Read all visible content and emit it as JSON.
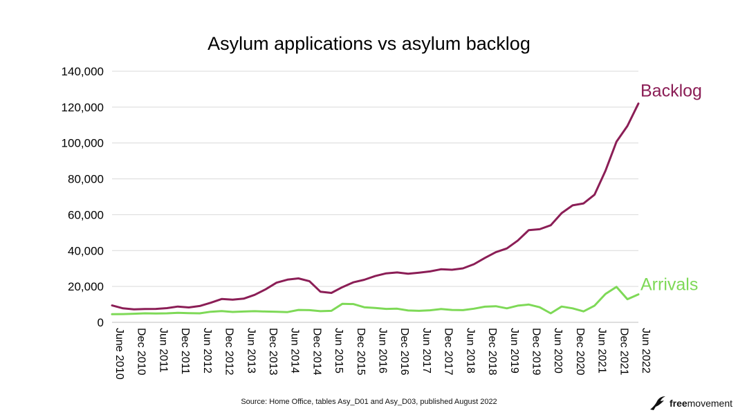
{
  "chart_data": {
    "type": "line",
    "title": "Asylum applications vs asylum backlog",
    "xlabel": "",
    "ylabel": "",
    "ylim": [
      0,
      140000
    ],
    "yticks": [
      "0",
      "20,000",
      "40,000",
      "60,000",
      "80,000",
      "100,000",
      "120,000",
      "140,000"
    ],
    "xtick_labels": [
      "June 2010",
      "Dec 2010",
      "Jun 2011",
      "Dec 2011",
      "Jun 2012",
      "Dec 2012",
      "Jun 2013",
      "Dec 2013",
      "Jun 2014",
      "Dec 2014",
      "Jun 2015",
      "Dec 2015",
      "Jun 2016",
      "Dec 2016",
      "Jun 2017",
      "Dec 2017",
      "Jun 2018",
      "Dec 2018",
      "Jun 2019",
      "Dec 2019",
      "Jun 2020",
      "Dec 2020",
      "Jun 2021",
      "Dec 2021",
      "Jun 2022"
    ],
    "x": [
      "Jun 2010",
      "Sep 2010",
      "Dec 2010",
      "Mar 2011",
      "Jun 2011",
      "Sep 2011",
      "Dec 2011",
      "Mar 2012",
      "Jun 2012",
      "Sep 2012",
      "Dec 2012",
      "Mar 2013",
      "Jun 2013",
      "Sep 2013",
      "Dec 2013",
      "Mar 2014",
      "Jun 2014",
      "Sep 2014",
      "Dec 2014",
      "Mar 2015",
      "Jun 2015",
      "Sep 2015",
      "Dec 2015",
      "Mar 2016",
      "Jun 2016",
      "Sep 2016",
      "Dec 2016",
      "Mar 2017",
      "Jun 2017",
      "Sep 2017",
      "Dec 2017",
      "Mar 2018",
      "Jun 2018",
      "Sep 2018",
      "Dec 2018",
      "Mar 2019",
      "Jun 2019",
      "Sep 2019",
      "Dec 2019",
      "Mar 2020",
      "Jun 2020",
      "Sep 2020",
      "Dec 2020",
      "Mar 2021",
      "Jun 2021",
      "Sep 2021",
      "Dec 2021",
      "Mar 2022",
      "Jun 2022"
    ],
    "series": [
      {
        "name": "Backlog",
        "color": "#8b1e56",
        "values": [
          9400,
          7800,
          7200,
          7400,
          7500,
          7900,
          8800,
          8300,
          9100,
          10900,
          13000,
          12600,
          13200,
          15300,
          18400,
          22100,
          23800,
          24500,
          22900,
          17100,
          16400,
          19600,
          22300,
          23700,
          25800,
          27300,
          27800,
          27100,
          27700,
          28400,
          29600,
          29300,
          30100,
          32400,
          35900,
          39100,
          41200,
          45600,
          51400,
          51900,
          54100,
          60900,
          65200,
          66300,
          71200,
          84500,
          100700,
          109500,
          122000
        ]
      },
      {
        "name": "Arrivals",
        "color": "#7ed957",
        "values": [
          4500,
          4600,
          4800,
          5000,
          4900,
          5000,
          5300,
          5100,
          5000,
          5900,
          6300,
          5800,
          6000,
          6200,
          6000,
          5900,
          5700,
          6900,
          6800,
          6200,
          6400,
          10300,
          10200,
          8400,
          8000,
          7500,
          7600,
          6600,
          6400,
          6700,
          7400,
          6900,
          6800,
          7600,
          8700,
          9000,
          7800,
          9300,
          9900,
          8400,
          5000,
          8800,
          7800,
          6100,
          9300,
          15800,
          19800,
          12900,
          15600
        ]
      }
    ],
    "grid": true,
    "legend": "inline-labels-at-line-ends"
  },
  "footer": {
    "source": "Source: Home Office, tables Asy_D01 and Asy_D03, published August 2022"
  },
  "brand": {
    "free": "free",
    "movement": "movement",
    "icon": "bird-icon",
    "color": "#111111"
  }
}
